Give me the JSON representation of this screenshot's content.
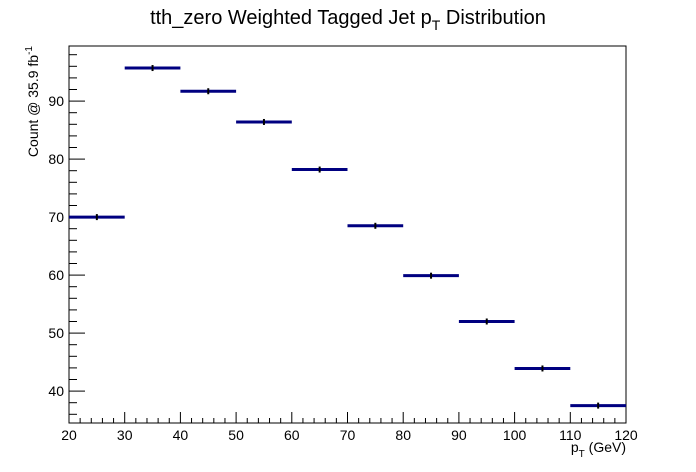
{
  "chart_data": {
    "type": "scatter",
    "title": {
      "prefix": "tth_zero Weighted Tagged Jet p",
      "sub": "T",
      "suffix": " Distribution"
    },
    "xlabel": {
      "main": "p",
      "sub": "T",
      "rest": " (GeV)"
    },
    "ylabel": {
      "main": "Count @ 35.9 fb",
      "sup": "-1"
    },
    "xlim": [
      20,
      120
    ],
    "ylim": [
      34.5,
      99.5
    ],
    "xticks": [
      20,
      30,
      40,
      50,
      60,
      70,
      80,
      90,
      100,
      110,
      120
    ],
    "yticks": [
      40,
      50,
      60,
      70,
      80,
      90
    ],
    "grid": false,
    "series_color": "#000080",
    "bins": [
      {
        "xlow": 20,
        "xhigh": 30,
        "y": 70.0,
        "err": 0.4
      },
      {
        "xlow": 30,
        "xhigh": 40,
        "y": 95.7,
        "err": 0.5
      },
      {
        "xlow": 40,
        "xhigh": 50,
        "y": 91.7,
        "err": 0.5
      },
      {
        "xlow": 50,
        "xhigh": 60,
        "y": 86.4,
        "err": 0.5
      },
      {
        "xlow": 60,
        "xhigh": 70,
        "y": 78.2,
        "err": 0.4
      },
      {
        "xlow": 70,
        "xhigh": 80,
        "y": 68.5,
        "err": 0.4
      },
      {
        "xlow": 80,
        "xhigh": 90,
        "y": 59.9,
        "err": 0.4
      },
      {
        "xlow": 90,
        "xhigh": 100,
        "y": 52.0,
        "err": 0.35
      },
      {
        "xlow": 100,
        "xhigh": 110,
        "y": 43.9,
        "err": 0.35
      },
      {
        "xlow": 110,
        "xhigh": 120,
        "y": 37.5,
        "err": 0.3
      }
    ]
  }
}
